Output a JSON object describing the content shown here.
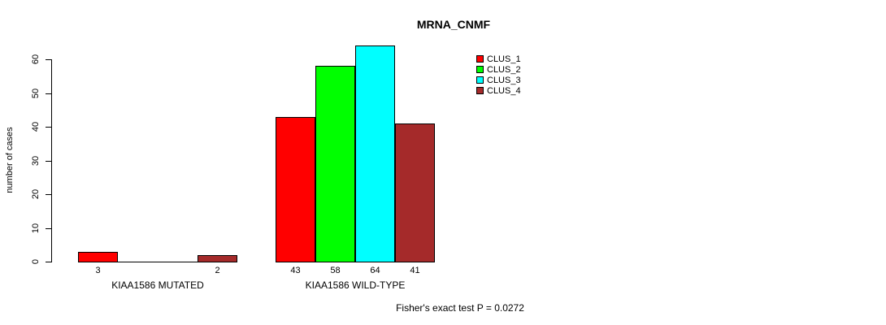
{
  "chart_data": {
    "type": "bar",
    "title": "MRNA_CNMF",
    "ylabel": "number of cases",
    "xlabel": "",
    "ylim": [
      0,
      60
    ],
    "yticks": [
      0,
      10,
      20,
      30,
      40,
      50,
      60
    ],
    "grid": false,
    "legend_position": "top-right",
    "series": [
      {
        "name": "CLUS_1",
        "color": "#ff0000"
      },
      {
        "name": "CLUS_2",
        "color": "#00ff00"
      },
      {
        "name": "CLUS_3",
        "color": "#00ffff"
      },
      {
        "name": "CLUS_4",
        "color": "#a52a2a"
      }
    ],
    "categories": [
      "KIAA1586 MUTATED",
      "KIAA1586 WILD-TYPE"
    ],
    "groups": [
      {
        "label": "KIAA1586 MUTATED",
        "values": [
          3,
          0,
          0,
          2
        ]
      },
      {
        "label": "KIAA1586 WILD-TYPE",
        "values": [
          43,
          58,
          64,
          41
        ]
      }
    ],
    "bar_value_labels_shown": [
      "3",
      "2",
      "43",
      "58",
      "64",
      "41"
    ],
    "annotation": "Fisher's exact test P = 0.0272"
  }
}
